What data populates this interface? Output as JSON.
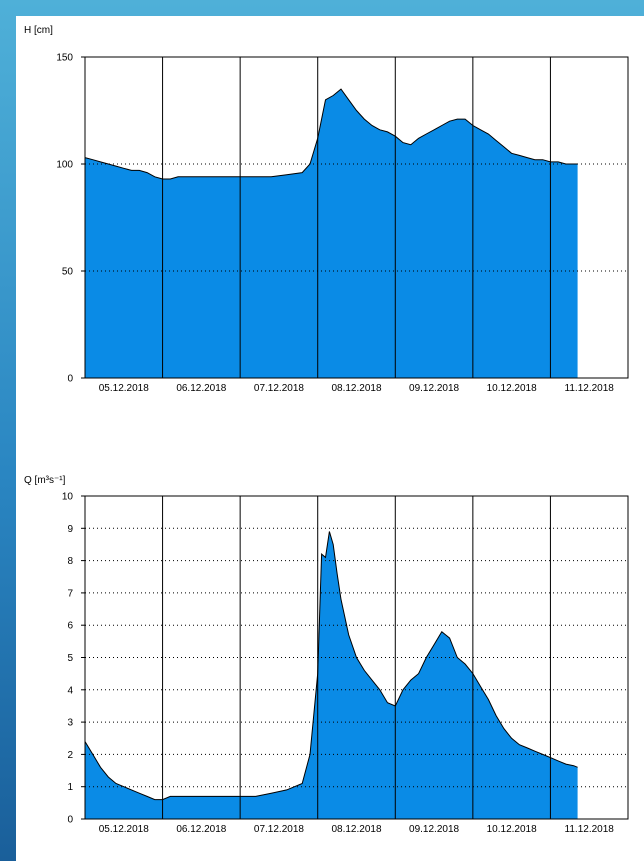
{
  "chart_data": [
    {
      "type": "area",
      "ylabel": "H [cm]",
      "ylim": [
        0,
        150
      ],
      "yticks": [
        0,
        50,
        100,
        150
      ],
      "xticks": [
        "05.12.2018",
        "06.12.2018",
        "07.12.2018",
        "08.12.2018",
        "09.12.2018",
        "10.12.2018",
        "11.12.2018"
      ],
      "xlim": [
        0,
        7
      ],
      "grid": "dotted horizontal at 50 and 100; solid vertical at day boundaries",
      "color": "#0a8be6",
      "x": [
        0,
        0.1,
        0.2,
        0.3,
        0.4,
        0.5,
        0.6,
        0.7,
        0.8,
        0.9,
        1.0,
        1.1,
        1.2,
        1.3,
        1.4,
        1.5,
        1.6,
        1.8,
        2.0,
        2.2,
        2.4,
        2.6,
        2.8,
        2.9,
        3.0,
        3.1,
        3.2,
        3.3,
        3.4,
        3.5,
        3.6,
        3.7,
        3.8,
        3.9,
        4.0,
        4.1,
        4.2,
        4.3,
        4.4,
        4.5,
        4.6,
        4.7,
        4.8,
        4.9,
        5.0,
        5.1,
        5.2,
        5.3,
        5.4,
        5.5,
        5.6,
        5.7,
        5.8,
        5.9,
        6.0,
        6.1,
        6.2,
        6.3,
        6.35
      ],
      "values": [
        103,
        102,
        101,
        100,
        99,
        98,
        97,
        97,
        96,
        94,
        93,
        93,
        94,
        94,
        94,
        94,
        94,
        94,
        94,
        94,
        94,
        95,
        96,
        100,
        112,
        130,
        132,
        135,
        130,
        125,
        121,
        118,
        116,
        115,
        113,
        110,
        109,
        112,
        114,
        116,
        118,
        120,
        121,
        121,
        118,
        116,
        114,
        111,
        108,
        105,
        104,
        103,
        102,
        102,
        101,
        101,
        100,
        100,
        100
      ]
    },
    {
      "type": "area",
      "ylabel": "Q [m³s⁻¹]",
      "ylim": [
        0,
        10
      ],
      "yticks": [
        0,
        1,
        2,
        3,
        4,
        5,
        6,
        7,
        8,
        9,
        10
      ],
      "xticks": [
        "05.12.2018",
        "06.12.2018",
        "07.12.2018",
        "08.12.2018",
        "09.12.2018",
        "10.12.2018",
        "11.12.2018"
      ],
      "xlim": [
        0,
        7
      ],
      "grid": "dotted horizontal at each integer; solid vertical at day boundaries",
      "color": "#0a8be6",
      "x": [
        0,
        0.1,
        0.2,
        0.3,
        0.4,
        0.5,
        0.6,
        0.7,
        0.8,
        0.9,
        1.0,
        1.1,
        1.2,
        1.3,
        1.4,
        1.5,
        1.6,
        1.8,
        2.0,
        2.2,
        2.4,
        2.6,
        2.8,
        2.9,
        3.0,
        3.05,
        3.1,
        3.15,
        3.2,
        3.25,
        3.3,
        3.4,
        3.5,
        3.6,
        3.7,
        3.8,
        3.9,
        4.0,
        4.1,
        4.2,
        4.3,
        4.4,
        4.5,
        4.6,
        4.7,
        4.8,
        4.9,
        5.0,
        5.1,
        5.2,
        5.3,
        5.4,
        5.5,
        5.6,
        5.7,
        5.8,
        5.9,
        6.0,
        6.1,
        6.2,
        6.3,
        6.35
      ],
      "values": [
        2.4,
        2.0,
        1.6,
        1.3,
        1.1,
        1.0,
        0.9,
        0.8,
        0.7,
        0.6,
        0.6,
        0.7,
        0.7,
        0.7,
        0.7,
        0.7,
        0.7,
        0.7,
        0.7,
        0.7,
        0.8,
        0.9,
        1.1,
        2.0,
        4.5,
        8.2,
        8.1,
        8.9,
        8.5,
        7.6,
        6.8,
        5.7,
        5.0,
        4.6,
        4.3,
        4.0,
        3.6,
        3.5,
        4.0,
        4.3,
        4.5,
        5.0,
        5.4,
        5.8,
        5.6,
        5.0,
        4.8,
        4.5,
        4.1,
        3.7,
        3.2,
        2.8,
        2.5,
        2.3,
        2.2,
        2.1,
        2.0,
        1.9,
        1.8,
        1.7,
        1.65,
        1.6
      ]
    }
  ]
}
